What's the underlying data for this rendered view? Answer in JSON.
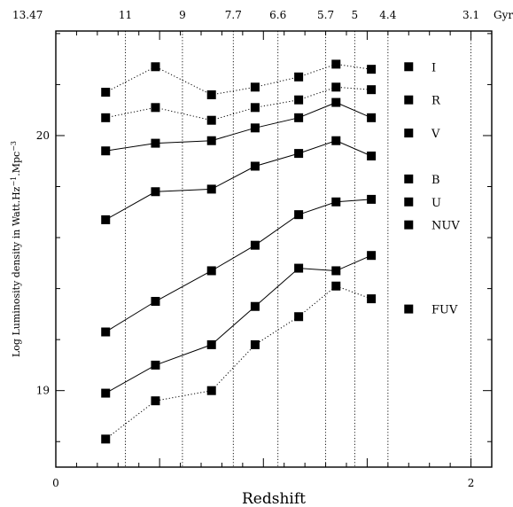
{
  "chart_data": {
    "type": "line",
    "xlabel": "Redshift",
    "ylabel": "Log Luminosity density in Watt.Hz",
    "ylabel_sup1": "−1",
    "ylabel_mid": ".Mpc",
    "ylabel_sup2": "−3",
    "xlim": [
      0,
      2.1
    ],
    "ylim": [
      18.7,
      20.41
    ],
    "x_ticks": [
      {
        "value": 0,
        "label": "0"
      },
      {
        "value": 2,
        "label": "2"
      }
    ],
    "x_minor_step": 0.1,
    "x_major_step": 0.5,
    "y_ticks": [
      {
        "value": 19,
        "label": "19"
      },
      {
        "value": 20,
        "label": "20"
      }
    ],
    "y_minor_step": 0.2,
    "y_major_step": 1,
    "top_axis": {
      "unit": "Gyr",
      "ticks": [
        {
          "z": 0,
          "label": "13.47"
        },
        {
          "z": 0.335,
          "label": "11"
        },
        {
          "z": 0.61,
          "label": "9"
        },
        {
          "z": 0.855,
          "label": "7.7"
        },
        {
          "z": 1.07,
          "label": "6.6"
        },
        {
          "z": 1.3,
          "label": "5.7"
        },
        {
          "z": 1.44,
          "label": "5"
        },
        {
          "z": 1.6,
          "label": "4.4"
        },
        {
          "z": 2.0,
          "label": "3.1"
        }
      ]
    },
    "series": [
      {
        "name": "I",
        "style": "dotted",
        "x": [
          0.24,
          0.48,
          0.75,
          0.96,
          1.17,
          1.35,
          1.52
        ],
        "y": [
          20.17,
          20.27,
          20.16,
          20.19,
          20.23,
          20.28,
          20.26
        ]
      },
      {
        "name": "R",
        "style": "dotted",
        "x": [
          0.24,
          0.48,
          0.75,
          0.96,
          1.17,
          1.35,
          1.52
        ],
        "y": [
          20.07,
          20.11,
          20.06,
          20.11,
          20.14,
          20.19,
          20.18
        ]
      },
      {
        "name": "V",
        "style": "solid",
        "x": [
          0.24,
          0.48,
          0.75,
          0.96,
          1.17,
          1.35,
          1.52
        ],
        "y": [
          19.94,
          19.97,
          19.98,
          20.03,
          20.07,
          20.13,
          20.07
        ]
      },
      {
        "name": "B",
        "style": "solid",
        "x": [
          0.24,
          0.48,
          0.75,
          0.96,
          1.17,
          1.35,
          1.52
        ],
        "y": [
          19.67,
          19.78,
          19.79,
          19.88,
          19.93,
          19.98,
          19.92
        ]
      },
      {
        "name": "U",
        "style": "solid",
        "x": [
          0.24,
          0.48,
          0.75,
          0.96,
          1.17,
          1.35,
          1.52
        ],
        "y": [
          19.23,
          19.35,
          19.47,
          19.57,
          19.69,
          19.74,
          19.75
        ]
      },
      {
        "name": "NUV",
        "style": "solid",
        "x": [
          0.24,
          0.48,
          0.75,
          0.96,
          1.17,
          1.35,
          1.52
        ],
        "y": [
          18.99,
          19.1,
          19.18,
          19.33,
          19.48,
          19.47,
          19.53
        ]
      },
      {
        "name": "FUV",
        "style": "dotted",
        "x": [
          0.24,
          0.48,
          0.75,
          0.96,
          1.17,
          1.35,
          1.52
        ],
        "y": [
          18.81,
          18.96,
          19.0,
          19.18,
          19.29,
          19.41,
          19.36
        ]
      }
    ],
    "extra_points": [
      {
        "series": "I",
        "x": 1.7,
        "y": 20.27
      },
      {
        "series": "R",
        "x": 1.7,
        "y": 20.14
      },
      {
        "series": "V",
        "x": 1.7,
        "y": 20.01
      },
      {
        "series": "B",
        "x": 1.7,
        "y": 19.83
      },
      {
        "series": "U",
        "x": 1.7,
        "y": 19.74
      },
      {
        "series": "NUV",
        "x": 1.7,
        "y": 19.65
      },
      {
        "series": "FUV",
        "x": 1.7,
        "y": 19.32
      }
    ],
    "series_labels": [
      {
        "text": "I",
        "y": 20.27
      },
      {
        "text": "R",
        "y": 20.14
      },
      {
        "text": "V",
        "y": 20.01
      },
      {
        "text": "B",
        "y": 19.83
      },
      {
        "text": "U",
        "y": 19.74
      },
      {
        "text": "NUV",
        "y": 19.65
      },
      {
        "text": "FUV",
        "y": 19.32
      }
    ],
    "vertical_guides": [
      0.335,
      0.61,
      0.855,
      1.07,
      1.3,
      1.44,
      1.6,
      2.0
    ],
    "grid": false
  }
}
